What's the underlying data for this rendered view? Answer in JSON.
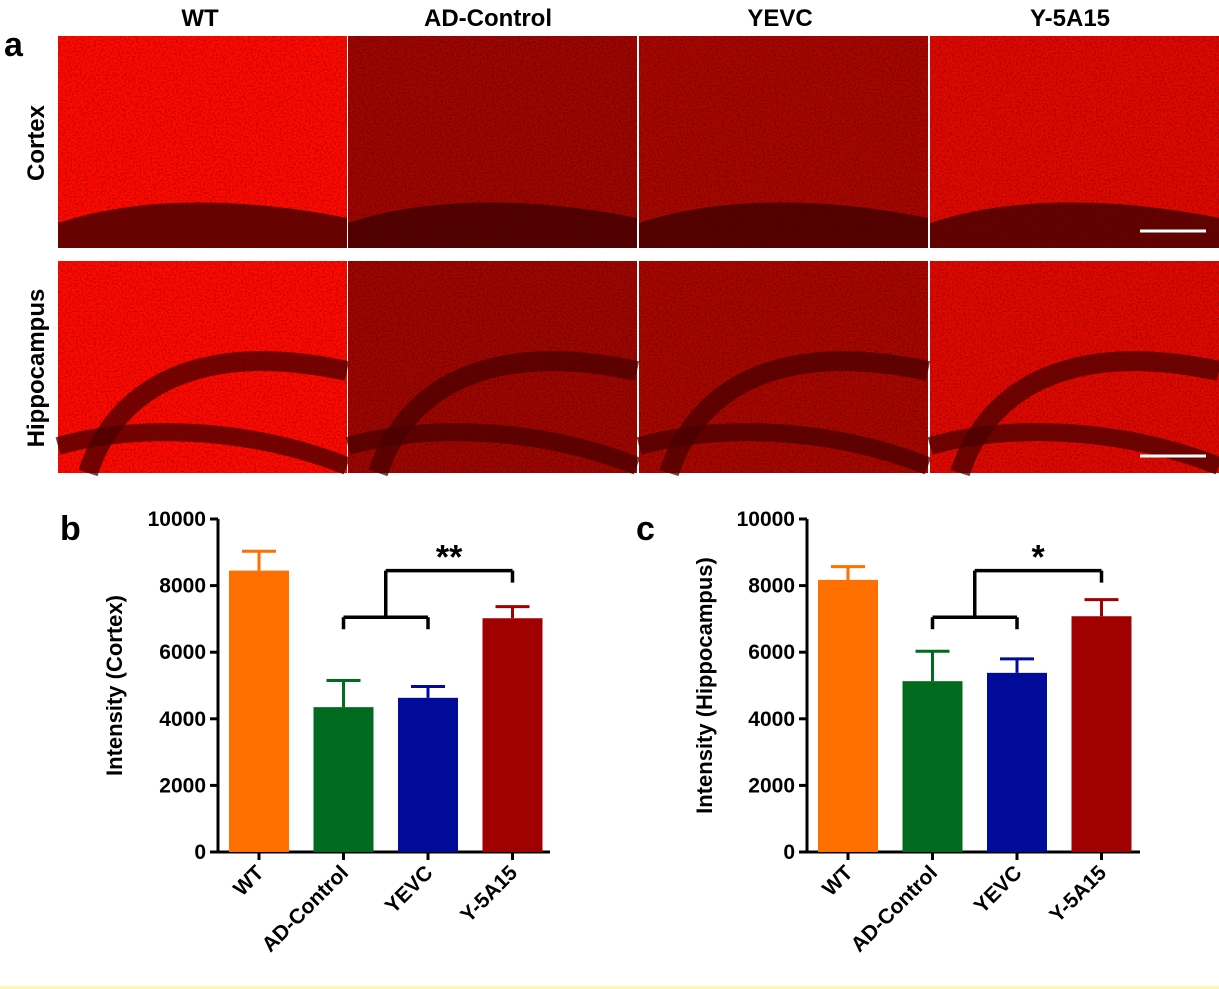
{
  "figure": {
    "panel_a_letter": "a",
    "panel_b_letter": "b",
    "panel_c_letter": "c",
    "column_labels": [
      "WT",
      "AD-Control",
      "YEVC",
      "Y-5A15"
    ],
    "row_labels": [
      "Cortex",
      "Hippocampus"
    ]
  },
  "colors": {
    "WT": "#ff6f00",
    "AD-Control": "#006b1f",
    "YEVC": "#000b99",
    "Y-5A15": "#a10000",
    "tissue": "#e60000"
  },
  "chart_data": [
    {
      "type": "bar",
      "panel": "b",
      "categories": [
        "WT",
        "AD-Control",
        "YEVC",
        "Y-5A15"
      ],
      "values": [
        8450,
        4350,
        4630,
        7020
      ],
      "errors": [
        580,
        800,
        340,
        350
      ],
      "ylabel": "Intensity (Cortex)",
      "ylim": [
        0,
        10000
      ],
      "yticks": [
        "0",
        "2000",
        "4000",
        "6000",
        "8000",
        "10000"
      ],
      "significance": "**"
    },
    {
      "type": "bar",
      "panel": "c",
      "categories": [
        "WT",
        "AD-Control",
        "YEVC",
        "Y-5A15"
      ],
      "values": [
        8170,
        5130,
        5380,
        7080
      ],
      "errors": [
        400,
        900,
        420,
        500
      ],
      "ylabel": "Intensity (Hippocampus)",
      "ylim": [
        0,
        10000
      ],
      "yticks": [
        "0",
        "2000",
        "4000",
        "6000",
        "8000",
        "10000"
      ],
      "significance": "*"
    }
  ]
}
